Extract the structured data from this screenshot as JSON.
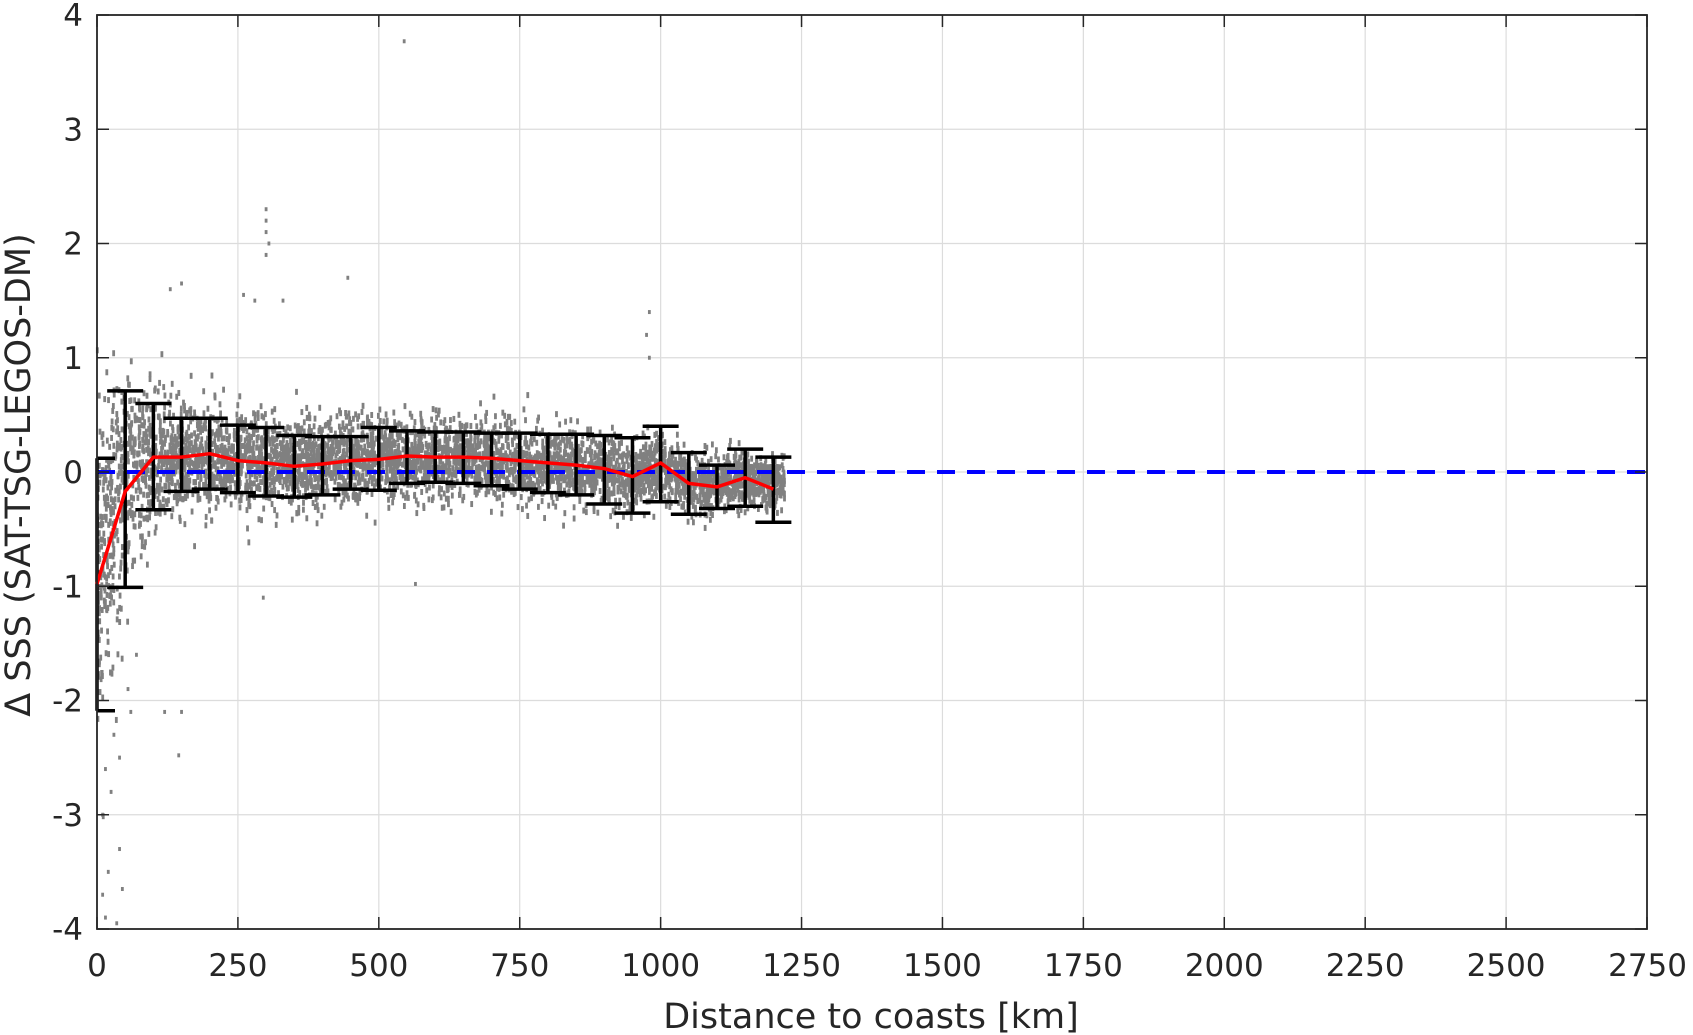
{
  "chart_data": {
    "type": "scatter",
    "title": "",
    "xlabel": "Distance to coasts [km]",
    "ylabel": "Δ SSS (SAT-TSG-LEGOS-DM)",
    "xlim": [
      0,
      2750
    ],
    "ylim": [
      -4,
      4
    ],
    "xticks": [
      "0",
      "250",
      "500",
      "750",
      "1000",
      "1250",
      "1500",
      "1750",
      "2000",
      "2250",
      "2500",
      "2750"
    ],
    "yticks": [
      "-4",
      "-3",
      "-2",
      "-1",
      "0",
      "1",
      "2",
      "3",
      "4"
    ],
    "grid": true,
    "colors": {
      "scatter": "#808080",
      "mean_line": "#ff0000",
      "reference_line": "#0000ff",
      "error_bars": "#000000",
      "axes": "#262626",
      "grid": "#dcdcdc"
    },
    "scatter_cloud": {
      "name": "",
      "description_range": {
        "x_extent": [
          0,
          1220
        ],
        "center": [
          [
            0,
            -0.9
          ],
          [
            25,
            -0.4
          ],
          [
            50,
            -0.1
          ],
          [
            100,
            0.1
          ],
          [
            150,
            0.12
          ],
          [
            200,
            0.14
          ],
          [
            250,
            0.1
          ],
          [
            300,
            0.08
          ],
          [
            350,
            0.05
          ],
          [
            400,
            0.08
          ],
          [
            450,
            0.1
          ],
          [
            500,
            0.1
          ],
          [
            550,
            0.12
          ],
          [
            600,
            0.12
          ],
          [
            650,
            0.1
          ],
          [
            700,
            0.1
          ],
          [
            750,
            0.08
          ],
          [
            800,
            0.07
          ],
          [
            850,
            0.04
          ],
          [
            900,
            0.0
          ],
          [
            950,
            -0.05
          ],
          [
            1000,
            0.05
          ],
          [
            1050,
            -0.1
          ],
          [
            1100,
            -0.1
          ],
          [
            1150,
            -0.05
          ],
          [
            1200,
            -0.1
          ]
        ],
        "spread": [
          [
            0,
            1.6
          ],
          [
            50,
            1.1
          ],
          [
            100,
            0.7
          ],
          [
            200,
            0.5
          ],
          [
            300,
            0.45
          ],
          [
            500,
            0.4
          ],
          [
            700,
            0.35
          ],
          [
            900,
            0.35
          ],
          [
            1000,
            0.3
          ],
          [
            1200,
            0.25
          ]
        ]
      },
      "outliers": [
        [
          300,
          2.3
        ],
        [
          300,
          2.2
        ],
        [
          300,
          2.1
        ],
        [
          305,
          2.0
        ],
        [
          300,
          1.9
        ],
        [
          545,
          3.77
        ],
        [
          445,
          1.7
        ],
        [
          130,
          1.6
        ],
        [
          150,
          1.65
        ],
        [
          260,
          1.55
        ],
        [
          280,
          1.5
        ],
        [
          330,
          1.5
        ],
        [
          980,
          1.4
        ],
        [
          975,
          1.2
        ],
        [
          980,
          1.0
        ],
        [
          145,
          -2.48
        ],
        [
          150,
          -2.1
        ],
        [
          120,
          -2.1
        ],
        [
          295,
          -1.1
        ],
        [
          565,
          -0.98
        ],
        [
          15,
          -3.9
        ],
        [
          10,
          -3.7
        ],
        [
          35,
          -3.95
        ],
        [
          45,
          -3.65
        ],
        [
          20,
          -3.5
        ],
        [
          40,
          -3.3
        ],
        [
          10,
          -3.0
        ],
        [
          25,
          -2.8
        ],
        [
          15,
          -2.6
        ],
        [
          40,
          -2.5
        ],
        [
          30,
          -2.3
        ],
        [
          60,
          -2.1
        ],
        [
          55,
          -1.9
        ],
        [
          70,
          -1.6
        ]
      ]
    },
    "mean_line": {
      "name": "",
      "x": [
        0,
        50,
        100,
        150,
        200,
        250,
        300,
        350,
        400,
        450,
        500,
        550,
        600,
        650,
        700,
        750,
        800,
        850,
        900,
        950,
        1000,
        1050,
        1100,
        1150,
        1200
      ],
      "y": [
        -0.98,
        -0.17,
        0.13,
        0.13,
        0.16,
        0.1,
        0.08,
        0.05,
        0.07,
        0.1,
        0.11,
        0.14,
        0.13,
        0.13,
        0.12,
        0.1,
        0.08,
        0.06,
        0.03,
        -0.04,
        0.08,
        -0.1,
        -0.13,
        -0.05,
        -0.15
      ]
    },
    "error_bars": {
      "x": [
        0,
        50,
        100,
        150,
        200,
        250,
        300,
        350,
        400,
        450,
        500,
        550,
        600,
        650,
        700,
        750,
        800,
        850,
        900,
        950,
        1000,
        1050,
        1100,
        1150,
        1200
      ],
      "lower": [
        -2.09,
        -1.01,
        -0.33,
        -0.17,
        -0.15,
        -0.18,
        -0.21,
        -0.22,
        -0.2,
        -0.15,
        -0.16,
        -0.1,
        -0.09,
        -0.1,
        -0.12,
        -0.15,
        -0.18,
        -0.2,
        -0.28,
        -0.36,
        -0.26,
        -0.37,
        -0.32,
        -0.3,
        -0.44
      ],
      "upper": [
        0.12,
        0.71,
        0.6,
        0.47,
        0.47,
        0.41,
        0.39,
        0.32,
        0.31,
        0.31,
        0.39,
        0.36,
        0.35,
        0.35,
        0.34,
        0.34,
        0.33,
        0.33,
        0.32,
        0.3,
        0.4,
        0.17,
        0.06,
        0.2,
        0.13
      ]
    },
    "reference_line": {
      "y": 0,
      "x_range": [
        0,
        2750
      ],
      "style": "dashed"
    }
  }
}
